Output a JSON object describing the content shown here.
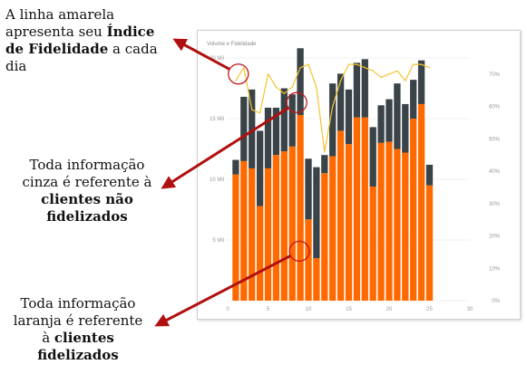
{
  "annotations": [
    {
      "id": "yellow-line",
      "lines": [
        [
          {
            "text": "A linha amarela"
          }
        ],
        [
          {
            "text": "apresenta seu "
          },
          {
            "text": "Índice",
            "bold": true
          }
        ],
        [
          {
            "text": "de Fidelidade",
            "bold": true
          },
          {
            "text": " a cada"
          }
        ],
        [
          {
            "text": "dia"
          }
        ]
      ]
    },
    {
      "id": "gray-bars",
      "lines": [
        [
          {
            "text": "Toda informação"
          }
        ],
        [
          {
            "text": "cinza é referente à"
          }
        ],
        [
          {
            "text": "clientes não",
            "bold": true
          }
        ],
        [
          {
            "text": "fidelizados",
            "bold": true
          }
        ]
      ]
    },
    {
      "id": "orange-bars",
      "lines": [
        [
          {
            "text": "Toda informação"
          }
        ],
        [
          {
            "text": "laranja é referente"
          }
        ],
        [
          {
            "text": "à "
          },
          {
            "text": "clientes",
            "bold": true
          }
        ],
        [
          {
            "text": "fidelizados",
            "bold": true
          }
        ]
      ]
    }
  ],
  "colors": {
    "orange": "#ff6a00",
    "gray": "#3a4347",
    "yellow": "#f4c430",
    "arrow": "#b01010",
    "circle": "#c0181b"
  },
  "chart_data": {
    "type": "bar",
    "title": "Volume e Fidelidade",
    "x": [
      1,
      2,
      3,
      4,
      5,
      6,
      7,
      8,
      9,
      10,
      11,
      12,
      13,
      14,
      15,
      16,
      17,
      18,
      19,
      20,
      21,
      22,
      23,
      24,
      25
    ],
    "x_ticks": [
      "0",
      "5",
      "10",
      "15",
      "20",
      "25",
      "30"
    ],
    "x_range": [
      0,
      30
    ],
    "y_left_ticks": [
      "",
      "5 Mil",
      "10 Mil",
      "15 Mil",
      "20 Mil"
    ],
    "y_left_range": [
      0,
      20000
    ],
    "y_right_ticks": [
      "0%",
      "10%",
      "20%",
      "30%",
      "40%",
      "50%",
      "60%",
      "70%"
    ],
    "y_right_range": [
      0,
      75
    ],
    "stacked": true,
    "series": [
      {
        "kind": "bar",
        "color_key": "orange",
        "values": [
          10400,
          11500,
          10900,
          7800,
          10900,
          12000,
          12300,
          12700,
          15300,
          6700,
          3500,
          10500,
          11900,
          14000,
          12900,
          15100,
          15100,
          9400,
          13000,
          13100,
          12500,
          12200,
          15000,
          16200,
          9500
        ]
      },
      {
        "kind": "bar",
        "color_key": "gray",
        "values": [
          1200,
          5300,
          6500,
          6200,
          5000,
          3900,
          5200,
          4300,
          5500,
          5000,
          7500,
          1500,
          6000,
          4700,
          4500,
          4500,
          4800,
          4900,
          3100,
          3500,
          5400,
          4000,
          3200,
          3600,
          1700
        ]
      },
      {
        "kind": "line",
        "color_key": "yellow",
        "axis": "right",
        "values": [
          68,
          72,
          59,
          58,
          70,
          66,
          64,
          66,
          72,
          73,
          66,
          46,
          60,
          68,
          73,
          73,
          72,
          71,
          69,
          70,
          71,
          68,
          73,
          73,
          72
        ]
      }
    ]
  }
}
